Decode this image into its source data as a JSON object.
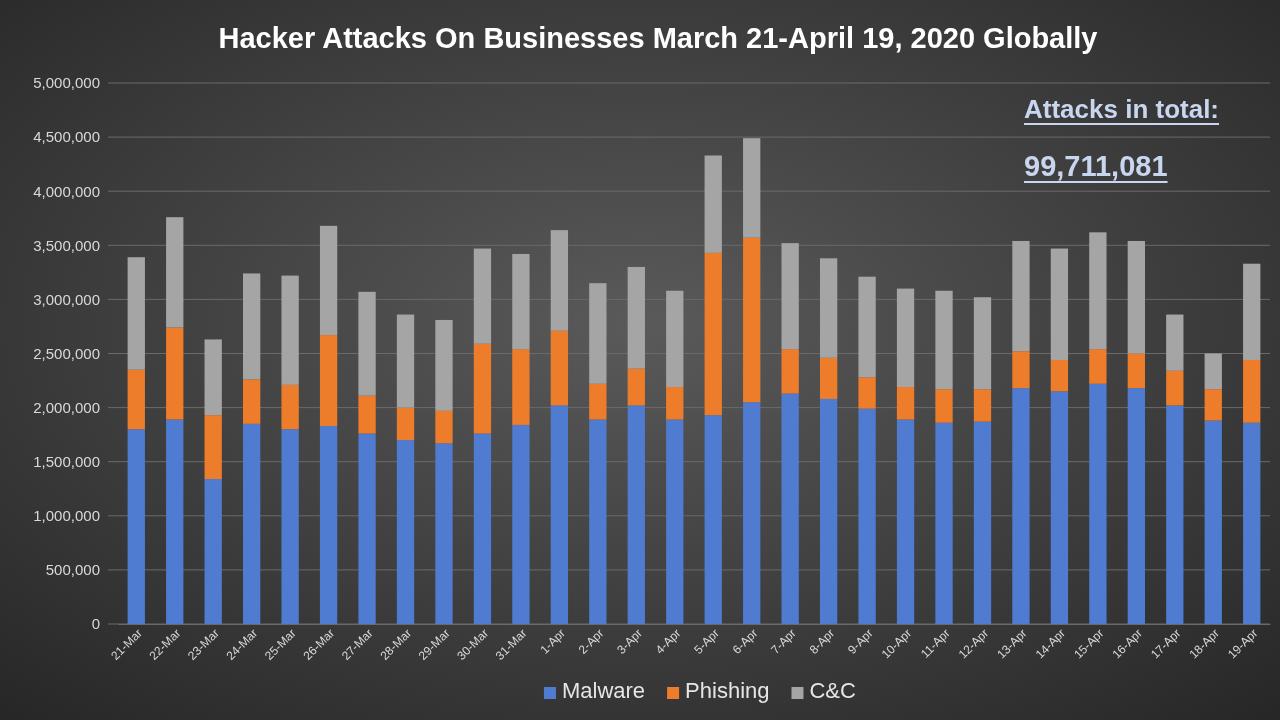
{
  "chart_data": {
    "type": "bar",
    "title": "Hacker Attacks On Businesses March 21-April 19, 2020 Globally",
    "annotations": [
      "Attacks in total:",
      "99,711,081"
    ],
    "categories": [
      "21-Mar",
      "22-Mar",
      "23-Mar",
      "24-Mar",
      "25-Mar",
      "26-Mar",
      "27-Mar",
      "28-Mar",
      "29-Mar",
      "30-Mar",
      "31-Mar",
      "1-Apr",
      "2-Apr",
      "3-Apr",
      "4-Apr",
      "5-Apr",
      "6-Apr",
      "7-Apr",
      "8-Apr",
      "9-Apr",
      "10-Apr",
      "11-Apr",
      "12-Apr",
      "13-Apr",
      "14-Apr",
      "15-Apr",
      "16-Apr",
      "17-Apr",
      "18-Apr",
      "19-Apr"
    ],
    "stacked": true,
    "series": [
      {
        "name": "Malware",
        "color": "#4f7bd0",
        "values": [
          1800000,
          1890000,
          1340000,
          1850000,
          1800000,
          1830000,
          1760000,
          1700000,
          1670000,
          1760000,
          1840000,
          2020000,
          1890000,
          2020000,
          1890000,
          1930000,
          2050000,
          2130000,
          2080000,
          1990000,
          1890000,
          1860000,
          1870000,
          2180000,
          2150000,
          2220000,
          2180000,
          2020000,
          1880000,
          1860000
        ]
      },
      {
        "name": "Phishing",
        "color": "#ee7d2b",
        "values": [
          550000,
          850000,
          590000,
          410000,
          410000,
          840000,
          350000,
          300000,
          300000,
          830000,
          700000,
          690000,
          330000,
          340000,
          300000,
          1500000,
          1520000,
          410000,
          380000,
          290000,
          300000,
          310000,
          300000,
          340000,
          290000,
          320000,
          320000,
          320000,
          290000,
          580000
        ]
      },
      {
        "name": "C&C",
        "color": "#a5a5a5",
        "values": [
          1040000,
          1020000,
          700000,
          980000,
          1010000,
          1010000,
          960000,
          860000,
          840000,
          880000,
          880000,
          930000,
          930000,
          940000,
          890000,
          900000,
          920000,
          980000,
          920000,
          930000,
          910000,
          910000,
          850000,
          1020000,
          1030000,
          1080000,
          1040000,
          520000,
          330000,
          890000
        ]
      }
    ],
    "ylim": [
      0,
      5000000
    ],
    "yticks": [
      {
        "value": 0,
        "label": "0"
      },
      {
        "value": 500000,
        "label": "500,000"
      },
      {
        "value": 1000000,
        "label": "1,000,000"
      },
      {
        "value": 1500000,
        "label": "1,500,000"
      },
      {
        "value": 2000000,
        "label": "2,000,000"
      },
      {
        "value": 2500000,
        "label": "2,500,000"
      },
      {
        "value": 3000000,
        "label": "3,000,000"
      },
      {
        "value": 3500000,
        "label": "3,500,000"
      },
      {
        "value": 4000000,
        "label": "4,000,000"
      },
      {
        "value": 4500000,
        "label": "4,500,000"
      },
      {
        "value": 5000000,
        "label": "5,000,000"
      }
    ],
    "grid": "y",
    "legend": "bottom"
  }
}
